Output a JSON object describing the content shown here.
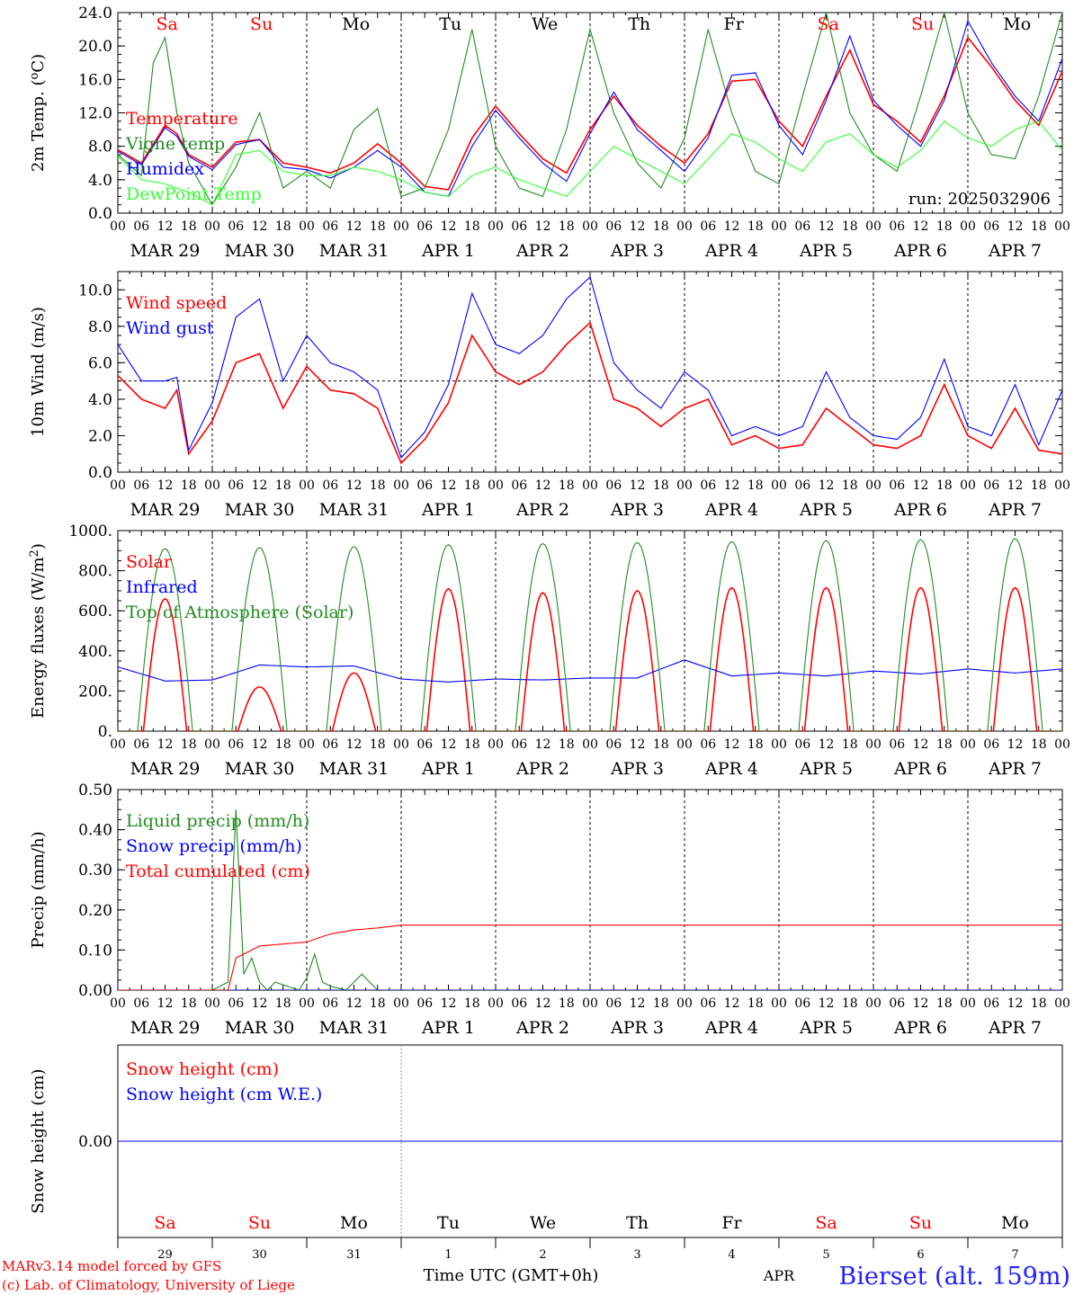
{
  "footer": {
    "model_line": "MARv3.14 model forced by GFS",
    "copyright_line": "(c) Lab. of Climatology, University of Liege",
    "time_label": "Time UTC (GMT+0h)",
    "month_label": "APR",
    "station": "Bierset (alt. 159m)"
  },
  "days": {
    "weekdays": [
      "Sa",
      "Su",
      "Mo",
      "Tu",
      "We",
      "Th",
      "Fr",
      "Sa",
      "Su",
      "Mo"
    ],
    "weekday_colors": [
      "#ff0000",
      "#ff0000",
      "#000000",
      "#000000",
      "#000000",
      "#000000",
      "#000000",
      "#ff0000",
      "#ff0000",
      "#000000"
    ],
    "date_labels": [
      "MAR 29",
      "MAR 30",
      "MAR 31",
      "APR  1",
      "APR  2",
      "APR  3",
      "APR  4",
      "APR  5",
      "APR  6",
      "APR  7"
    ],
    "day_numbers": [
      "29",
      "30",
      "31",
      "1",
      "2",
      "3",
      "4",
      "5",
      "6",
      "7"
    ],
    "hour_ticks": [
      "00",
      "06",
      "12",
      "18"
    ],
    "final_hour": "00"
  },
  "chart_data": [
    {
      "type": "line",
      "ylabel": "2m Temp. (oC)",
      "ylim": [
        0,
        24
      ],
      "yticks": [
        "0.0",
        "4.0",
        "8.0",
        "12.0",
        "16.0",
        "20.0",
        "24.0"
      ],
      "x_unit": "hours since MAR 29 00 UTC",
      "annotation": "run: 2025032906",
      "series": [
        {
          "name": "Temperature",
          "color": "#ff0000",
          "x": [
            0,
            6,
            12,
            15,
            18,
            24,
            30,
            36,
            42,
            48,
            54,
            60,
            66,
            72,
            78,
            84,
            90,
            96,
            102,
            108,
            114,
            120,
            126,
            132,
            138,
            144,
            150,
            156,
            162,
            168,
            174,
            180,
            186,
            192,
            198,
            204,
            210,
            216,
            222,
            228,
            234,
            240
          ],
          "values": [
            7.6,
            6.0,
            10.5,
            9.5,
            7.0,
            5.5,
            8.5,
            8.8,
            6.0,
            5.5,
            4.8,
            6.0,
            8.3,
            6.0,
            3.2,
            2.8,
            9.0,
            12.8,
            9.5,
            6.5,
            4.8,
            10.0,
            14.0,
            10.5,
            8.0,
            6.0,
            9.5,
            15.8,
            16.0,
            11.0,
            8.0,
            14.0,
            19.5,
            13.0,
            11.0,
            8.5,
            14.0,
            21.0,
            17.5,
            13.5,
            10.5,
            17.0
          ]
        },
        {
          "name": "Vigne temp",
          "color": "#228B22",
          "x": [
            0,
            6,
            9,
            12,
            15,
            18,
            24,
            30,
            36,
            42,
            48,
            54,
            60,
            66,
            72,
            78,
            84,
            90,
            96,
            102,
            108,
            114,
            120,
            126,
            132,
            138,
            144,
            150,
            156,
            162,
            168,
            174,
            180,
            186,
            192,
            198,
            204,
            210,
            216,
            222,
            228,
            234,
            240
          ],
          "values": [
            7.0,
            4.5,
            18.0,
            21.0,
            12.0,
            6.0,
            1.0,
            5.5,
            12.0,
            3.0,
            5.0,
            3.0,
            10.0,
            12.5,
            2.0,
            3.0,
            10.0,
            22.0,
            8.0,
            3.0,
            2.0,
            10.0,
            22.0,
            12.0,
            6.0,
            3.0,
            9.0,
            22.0,
            12.0,
            5.0,
            3.5,
            14.0,
            24.0,
            12.0,
            7.0,
            5.0,
            14.0,
            24.0,
            12.0,
            7.0,
            6.5,
            14.0,
            24.0
          ]
        },
        {
          "name": "Humidex",
          "color": "#0000ff",
          "x": [
            0,
            6,
            12,
            15,
            18,
            24,
            30,
            36,
            42,
            48,
            54,
            60,
            66,
            72,
            78,
            84,
            90,
            96,
            102,
            108,
            114,
            120,
            126,
            132,
            138,
            144,
            150,
            156,
            162,
            168,
            174,
            180,
            186,
            192,
            198,
            204,
            210,
            216,
            222,
            228,
            234,
            240
          ],
          "values": [
            7.4,
            5.8,
            10.2,
            9.2,
            6.8,
            5.2,
            8.2,
            8.8,
            5.5,
            5.2,
            4.2,
            5.5,
            7.5,
            5.5,
            2.5,
            2.0,
            8.0,
            12.3,
            9.0,
            6.0,
            3.8,
            9.5,
            14.5,
            10.0,
            7.5,
            5.0,
            9.0,
            16.5,
            16.8,
            10.5,
            7.0,
            13.5,
            21.2,
            13.5,
            10.5,
            8.0,
            13.5,
            23.0,
            18.0,
            14.0,
            11.0,
            18.5
          ]
        },
        {
          "name": "DewPoint Temp",
          "color": "#33ff33",
          "x": [
            0,
            6,
            12,
            15,
            18,
            24,
            30,
            36,
            42,
            48,
            54,
            60,
            66,
            72,
            78,
            84,
            90,
            96,
            102,
            108,
            114,
            120,
            126,
            132,
            138,
            144,
            150,
            156,
            162,
            168,
            174,
            180,
            186,
            192,
            198,
            204,
            210,
            216,
            222,
            228,
            234,
            240
          ],
          "values": [
            6.8,
            4.0,
            3.5,
            3.0,
            2.5,
            1.0,
            7.0,
            7.5,
            5.0,
            4.5,
            4.5,
            5.5,
            5.0,
            4.0,
            2.5,
            2.0,
            4.5,
            5.5,
            4.0,
            3.0,
            2.0,
            5.0,
            8.0,
            6.5,
            5.0,
            3.5,
            6.5,
            9.5,
            8.5,
            6.5,
            5.0,
            8.5,
            9.5,
            7.0,
            5.5,
            7.5,
            11.0,
            9.0,
            8.0,
            10.0,
            11.0,
            7.5
          ]
        }
      ]
    },
    {
      "type": "line",
      "ylabel": "10m Wind (m/s)",
      "ylim": [
        0,
        11
      ],
      "yticks": [
        "0.0",
        "2.0",
        "4.0",
        "6.0",
        "8.0",
        "10.0"
      ],
      "reference_line": 5.0,
      "series": [
        {
          "name": "Wind speed",
          "color": "#ff0000",
          "x": [
            0,
            6,
            12,
            15,
            18,
            24,
            30,
            36,
            42,
            48,
            54,
            60,
            66,
            72,
            78,
            84,
            90,
            96,
            102,
            108,
            114,
            120,
            126,
            132,
            138,
            144,
            150,
            156,
            162,
            168,
            174,
            180,
            186,
            192,
            198,
            204,
            210,
            216,
            222,
            228,
            234,
            240
          ],
          "values": [
            5.3,
            4.0,
            3.5,
            4.5,
            1.0,
            2.8,
            6.0,
            6.5,
            3.5,
            5.8,
            4.5,
            4.3,
            3.5,
            0.5,
            1.8,
            3.8,
            7.5,
            5.5,
            4.8,
            5.5,
            7.0,
            8.2,
            4.0,
            3.5,
            2.5,
            3.5,
            4.0,
            1.5,
            2.0,
            1.3,
            1.5,
            3.5,
            2.5,
            1.5,
            1.3,
            2.0,
            4.8,
            2.0,
            1.3,
            3.5,
            1.2,
            1.0
          ]
        },
        {
          "name": "Wind gust",
          "color": "#0000ff",
          "x": [
            0,
            6,
            12,
            15,
            18,
            24,
            30,
            36,
            42,
            48,
            54,
            60,
            66,
            72,
            78,
            84,
            90,
            96,
            102,
            108,
            114,
            120,
            126,
            132,
            138,
            144,
            150,
            156,
            162,
            168,
            174,
            180,
            186,
            192,
            198,
            204,
            210,
            216,
            222,
            228,
            234,
            240
          ],
          "values": [
            7.0,
            5.0,
            5.0,
            5.2,
            1.2,
            3.8,
            8.5,
            9.5,
            5.0,
            7.5,
            6.0,
            5.5,
            4.5,
            0.8,
            2.2,
            4.8,
            9.8,
            7.0,
            6.5,
            7.5,
            9.5,
            10.7,
            6.0,
            4.5,
            3.5,
            5.5,
            4.5,
            2.0,
            2.5,
            2.0,
            2.5,
            5.5,
            3.0,
            2.0,
            1.8,
            3.0,
            6.2,
            2.5,
            2.0,
            4.8,
            1.5,
            4.5
          ]
        }
      ]
    },
    {
      "type": "line",
      "ylabel": "Energy fluxes (W/m2)",
      "ylim": [
        0,
        1000
      ],
      "yticks": [
        "0.",
        "200.",
        "400.",
        "600.",
        "800.",
        "1000."
      ],
      "series": [
        {
          "name": "Solar",
          "color": "#ff0000",
          "daily_peak": [
            660,
            220,
            290,
            710,
            690,
            700,
            715,
            715,
            715,
            715
          ]
        },
        {
          "name": "Infrared",
          "color": "#0000ff",
          "x": [
            0,
            12,
            24,
            36,
            48,
            60,
            72,
            84,
            96,
            108,
            120,
            132,
            144,
            156,
            168,
            180,
            192,
            204,
            216,
            228,
            240
          ],
          "values": [
            320,
            250,
            255,
            330,
            320,
            325,
            260,
            245,
            260,
            255,
            265,
            265,
            355,
            275,
            290,
            275,
            300,
            285,
            310,
            290,
            310
          ]
        },
        {
          "name": "Top of Atmosphere (Solar)",
          "color": "#228B22",
          "daily_peak": [
            910,
            915,
            920,
            930,
            935,
            940,
            945,
            950,
            955,
            960
          ]
        }
      ]
    },
    {
      "type": "line",
      "ylabel": "Precip (mm/h)",
      "ylim": [
        0,
        0.5
      ],
      "yticks": [
        "0.00",
        "0.10",
        "0.20",
        "0.30",
        "0.40",
        "0.50"
      ],
      "series": [
        {
          "name": "Liquid precip (mm/h)",
          "color": "#228B22",
          "x": [
            0,
            24,
            28,
            30,
            32,
            34,
            36,
            38,
            40,
            46,
            48,
            50,
            52,
            54,
            58,
            62,
            66,
            70,
            72,
            240
          ],
          "values": [
            0,
            0,
            0.02,
            0.45,
            0.04,
            0.08,
            0.02,
            0.0,
            0.02,
            0.0,
            0.03,
            0.09,
            0.02,
            0.01,
            0.0,
            0.04,
            0.0,
            0.0,
            0.0,
            0.0
          ]
        },
        {
          "name": "Snow precip (mm/h)",
          "color": "#0000ff",
          "x": [
            0,
            240
          ],
          "values": [
            0,
            0
          ]
        },
        {
          "name": "Total cumulated (cm)",
          "color": "#ff0000",
          "x": [
            0,
            28,
            30,
            36,
            42,
            48,
            54,
            60,
            66,
            72,
            240
          ],
          "values": [
            0,
            0,
            0.08,
            0.11,
            0.115,
            0.12,
            0.14,
            0.15,
            0.155,
            0.162,
            0.162
          ]
        }
      ]
    },
    {
      "type": "line",
      "ylabel": "Snow height (cm)",
      "yticks": [
        "0.00"
      ],
      "series": [
        {
          "name": "Snow height (cm)",
          "color": "#ff0000",
          "x": [
            0,
            240
          ],
          "values": [
            0,
            0
          ]
        },
        {
          "name": "Snow height (cm W.E.)",
          "color": "#0000ff",
          "x": [
            0,
            240
          ],
          "values": [
            0,
            0
          ]
        }
      ]
    }
  ]
}
